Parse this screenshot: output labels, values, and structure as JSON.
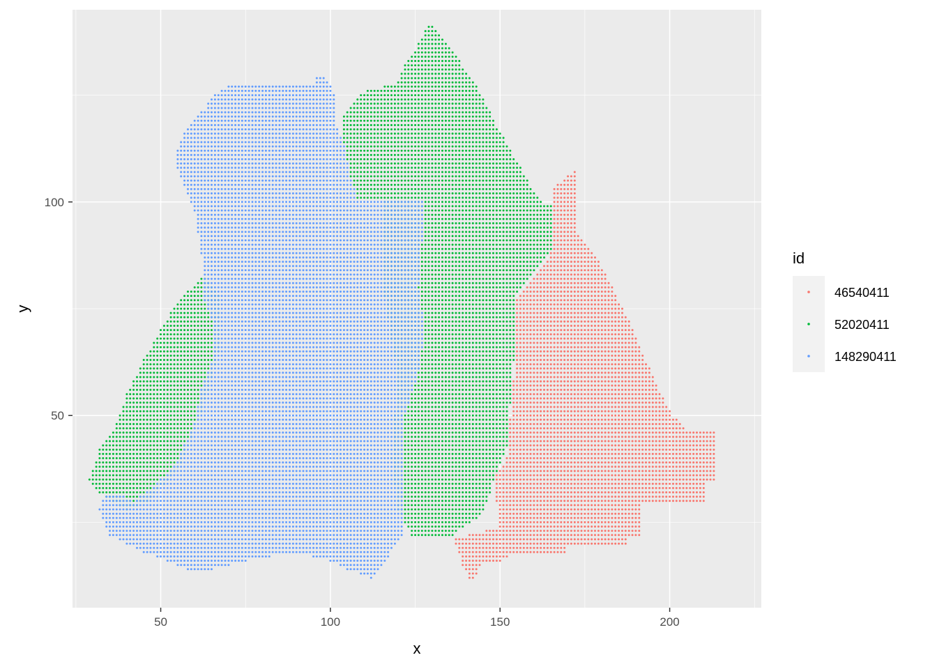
{
  "chart_data": {
    "type": "scatter",
    "title": "",
    "xlabel": "x",
    "ylabel": "y",
    "xlim": [
      24,
      227
    ],
    "ylim": [
      5,
      145
    ],
    "x_ticks": [
      50,
      100,
      150,
      200
    ],
    "y_ticks": [
      50,
      100
    ],
    "x_tick_labels": [
      "50",
      "100",
      "150",
      "200"
    ],
    "y_tick_labels": [
      "50",
      "100"
    ],
    "grid": true,
    "legend": {
      "title": "id",
      "placement": "right"
    },
    "point_spacing": 1,
    "series": [
      {
        "name": "46540411",
        "color": "#F8766D",
        "region_polygon": [
          [
            165,
            103
          ],
          [
            173,
            108
          ],
          [
            173,
            93
          ],
          [
            180,
            85
          ],
          [
            185,
            77
          ],
          [
            189,
            71
          ],
          [
            193,
            63
          ],
          [
            197,
            56
          ],
          [
            201,
            50
          ],
          [
            205,
            47
          ],
          [
            214,
            47
          ],
          [
            214,
            35
          ],
          [
            211,
            35
          ],
          [
            211,
            30
          ],
          [
            196,
            30
          ],
          [
            192,
            30
          ],
          [
            192,
            22
          ],
          [
            188,
            22
          ],
          [
            188,
            20
          ],
          [
            170,
            20
          ],
          [
            170,
            18
          ],
          [
            155,
            18
          ],
          [
            150,
            16
          ],
          [
            145,
            16
          ],
          [
            143,
            12
          ],
          [
            141,
            12
          ],
          [
            139,
            15
          ],
          [
            138,
            18
          ],
          [
            136,
            21
          ],
          [
            140,
            22
          ],
          [
            150,
            24
          ],
          [
            148,
            35
          ],
          [
            152,
            40
          ],
          [
            154,
            58
          ],
          [
            155,
            77
          ],
          [
            160,
            82
          ],
          [
            165,
            88
          ],
          [
            166,
            96
          ]
        ]
      },
      {
        "name": "52020411",
        "color": "#00BA38",
        "region_polygon": [
          [
            129,
            142
          ],
          [
            134,
            138
          ],
          [
            139,
            132
          ],
          [
            144,
            126
          ],
          [
            149,
            118
          ],
          [
            154,
            111
          ],
          [
            159,
            104
          ],
          [
            163,
            100
          ],
          [
            166,
            99
          ],
          [
            166,
            90
          ],
          [
            162,
            85
          ],
          [
            155,
            79
          ],
          [
            154,
            62
          ],
          [
            152,
            42
          ],
          [
            148,
            34
          ],
          [
            145,
            27
          ],
          [
            136,
            22
          ],
          [
            124,
            22
          ],
          [
            120,
            28
          ],
          [
            118,
            40
          ],
          [
            119,
            50
          ],
          [
            120,
            60
          ],
          [
            118,
            68
          ],
          [
            116,
            78
          ],
          [
            115,
            90
          ],
          [
            116,
            101
          ],
          [
            108,
            101
          ],
          [
            106,
            106
          ],
          [
            104,
            114
          ],
          [
            104,
            120
          ],
          [
            110,
            126
          ],
          [
            120,
            128
          ],
          [
            122,
            132
          ],
          [
            126,
            137
          ]
        ]
      },
      {
        "name": "52020411",
        "color": "#00BA38",
        "region_polygon": [
          [
            63,
            83
          ],
          [
            55,
            77
          ],
          [
            50,
            70
          ],
          [
            45,
            63
          ],
          [
            40,
            55
          ],
          [
            36,
            46
          ],
          [
            32,
            42
          ],
          [
            29,
            35
          ],
          [
            32,
            32
          ],
          [
            36,
            30
          ],
          [
            40,
            28
          ],
          [
            46,
            30
          ],
          [
            55,
            37
          ],
          [
            60,
            46
          ],
          [
            65,
            58
          ],
          [
            68,
            68
          ],
          [
            68,
            78
          ]
        ]
      },
      {
        "name": "148290411",
        "color": "#619CFF",
        "region_polygon": [
          [
            72,
            128
          ],
          [
            96,
            128
          ],
          [
            96,
            130
          ],
          [
            98,
            130
          ],
          [
            100,
            128
          ],
          [
            102,
            124
          ],
          [
            102,
            118
          ],
          [
            104,
            114
          ],
          [
            106,
            106
          ],
          [
            108,
            101
          ],
          [
            116,
            101
          ],
          [
            128,
            101
          ],
          [
            127,
            90
          ],
          [
            126,
            80
          ],
          [
            128,
            70
          ],
          [
            126,
            60
          ],
          [
            122,
            50
          ],
          [
            122,
            30
          ],
          [
            122,
            22
          ],
          [
            118,
            18
          ],
          [
            115,
            14
          ],
          [
            112,
            12
          ],
          [
            105,
            14
          ],
          [
            100,
            16
          ],
          [
            90,
            18
          ],
          [
            75,
            16
          ],
          [
            65,
            14
          ],
          [
            58,
            14
          ],
          [
            52,
            16
          ],
          [
            45,
            18
          ],
          [
            40,
            20
          ],
          [
            35,
            22
          ],
          [
            32,
            28
          ],
          [
            34,
            32
          ],
          [
            38,
            32
          ],
          [
            42,
            30
          ],
          [
            47,
            33
          ],
          [
            54,
            38
          ],
          [
            60,
            48
          ],
          [
            62,
            56
          ],
          [
            65,
            62
          ],
          [
            66,
            70
          ],
          [
            63,
            77
          ],
          [
            62,
            88
          ],
          [
            60,
            98
          ],
          [
            57,
            104
          ],
          [
            55,
            108
          ],
          [
            55,
            112
          ],
          [
            58,
            118
          ],
          [
            63,
            122
          ],
          [
            67,
            126
          ]
        ]
      }
    ]
  }
}
